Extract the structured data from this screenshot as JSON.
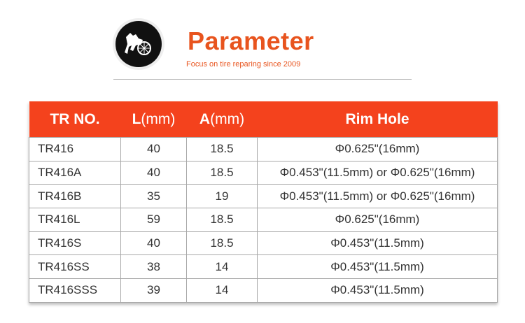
{
  "header": {
    "title": "Parameter",
    "subtitle": "Focus on  tire reparing since 2009"
  },
  "table": {
    "headers": [
      {
        "text": "TR NO."
      },
      {
        "text": "L",
        "unit": "(mm)"
      },
      {
        "text": "A",
        "unit": "(mm)"
      },
      {
        "text": "Rim Hole"
      }
    ],
    "rows": [
      [
        "TR416",
        "40",
        "18.5",
        "Φ0.625\"(16mm)"
      ],
      [
        "TR416A",
        "40",
        "18.5",
        "Φ0.453\"(11.5mm) or Φ0.625\"(16mm)"
      ],
      [
        "TR416B",
        "35",
        "19",
        "Φ0.453\"(11.5mm) or Φ0.625\"(16mm)"
      ],
      [
        "TR416L",
        "59",
        "18.5",
        "Φ0.625\"(16mm)"
      ],
      [
        "TR416S",
        "40",
        "18.5",
        "Φ0.453\"(11.5mm)"
      ],
      [
        "TR416SS",
        "38",
        "14",
        "Φ0.453\"(11.5mm)"
      ],
      [
        "TR416SSS",
        "39",
        "14",
        "Φ0.453\"(11.5mm)"
      ]
    ]
  }
}
